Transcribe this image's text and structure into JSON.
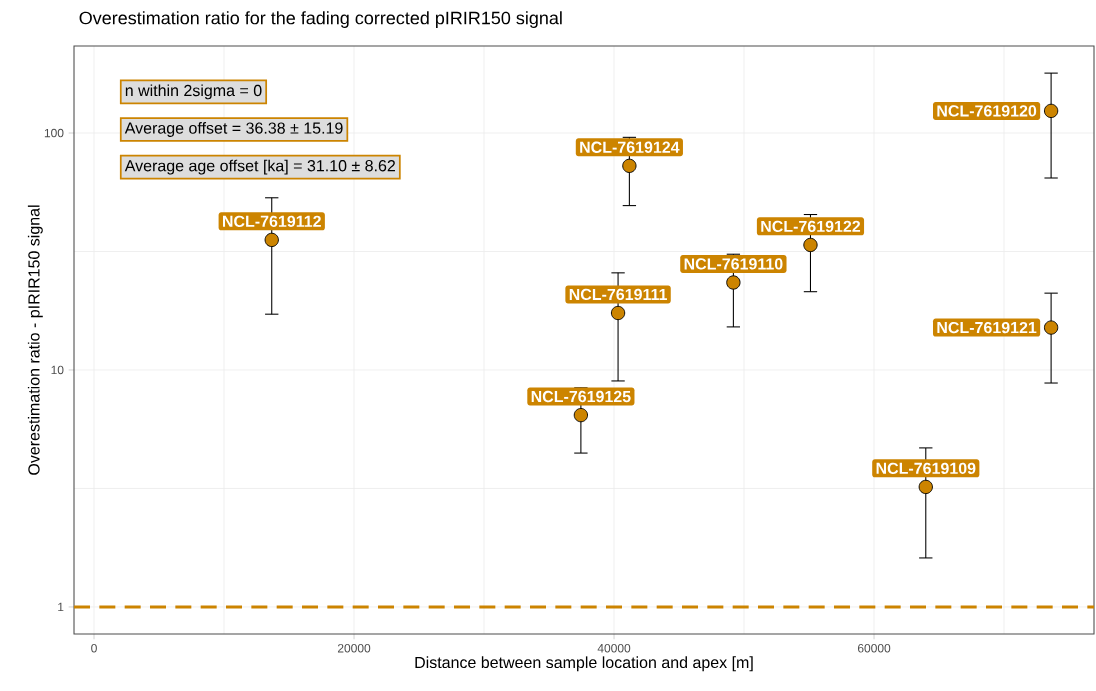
{
  "chart_data": {
    "type": "scatter",
    "title": "Overestimation ratio for the fading corrected pIRIR150 signal",
    "xlabel": "Distance between sample location and apex [m]",
    "ylabel": "Overestimation ratio - pIRIR150 signal",
    "log": "y",
    "grid": true,
    "marker": "circle",
    "xlim": [
      -1540,
      76920
    ],
    "ylim": [
      0.769,
      233
    ],
    "xticks": [
      0,
      {
        "value": 10000,
        "label": null
      },
      20000,
      {
        "value": 30000,
        "label": null
      },
      40000,
      {
        "value": 50000,
        "label": null
      },
      60000,
      {
        "value": 70000,
        "label": null
      }
    ],
    "yticks": [
      1,
      {
        "value": 3.162,
        "label": null
      },
      10,
      {
        "value": 31.62,
        "label": null
      },
      100
    ],
    "series": [
      {
        "color": "#cc8400",
        "x": [
          13670,
          37450,
          40310,
          41180,
          49180,
          55110,
          63980,
          73620,
          73620
        ],
        "values": [
          35.4,
          6.45,
          17.4,
          72.7,
          23.4,
          33.7,
          3.21,
          124,
          15.1
        ],
        "errors": [
          [
            17.2,
            53.3
          ],
          [
            4.46,
            8.41
          ],
          [
            8.99,
            25.7
          ],
          [
            49.4,
            95.9
          ],
          [
            15.2,
            30.8
          ],
          [
            21.4,
            45.3
          ],
          [
            1.61,
            4.69
          ],
          [
            64.6,
            179
          ],
          [
            8.81,
            21.1
          ]
        ]
      }
    ],
    "ref_lines": [
      {
        "axis": "y",
        "value": 1,
        "color": "#cc8400",
        "line_style": "dashed"
      }
    ],
    "annotations": [
      "n within 2sigma = 0",
      "Average offset = 36.38 ± 15.19",
      "Average age offset [ka] = 31.10 ± 8.62",
      {
        "text": "NCL-7619112",
        "x": 13670,
        "y": 35.4
      },
      {
        "text": "NCL-7619124",
        "x": 41180,
        "y": 72.7
      },
      {
        "text": "NCL-7619120",
        "x": 73620,
        "y": 124
      },
      {
        "text": "NCL-7619122",
        "x": 55110,
        "y": 33.7
      },
      {
        "text": "NCL-7619110",
        "x": 49180,
        "y": 23.4
      },
      {
        "text": "NCL-7619111",
        "x": 40310,
        "y": 17.4
      },
      {
        "text": "NCL-7619125",
        "x": 37450,
        "y": 6.45
      },
      {
        "text": "NCL-7619121",
        "x": 73620,
        "y": 15.1
      },
      {
        "text": "NCL-7619109",
        "x": 63980,
        "y": 3.21
      }
    ]
  }
}
